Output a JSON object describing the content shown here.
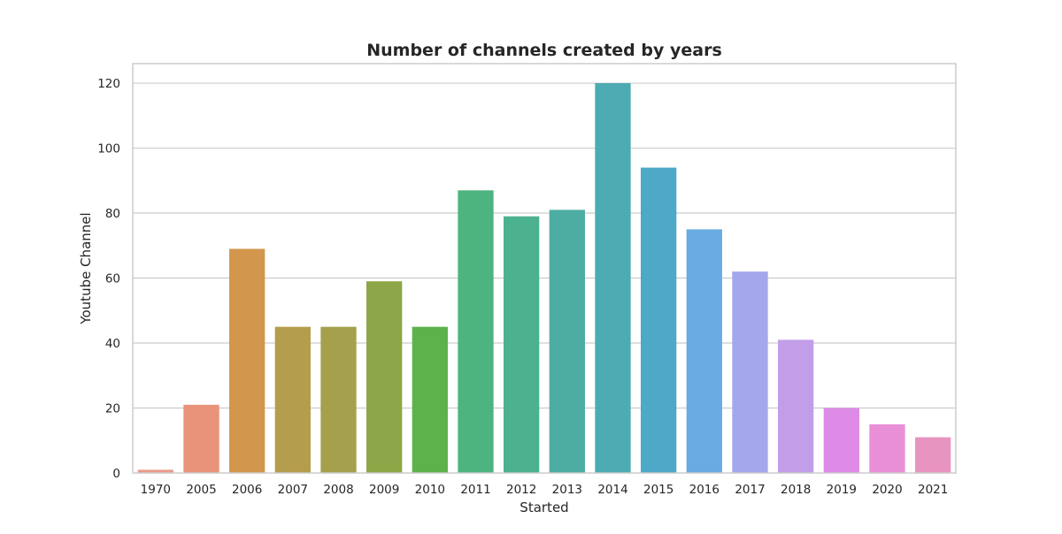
{
  "chart_data": {
    "type": "bar",
    "title": "Number of channels created by years",
    "xlabel": "Started",
    "ylabel": "Youtube Channel",
    "categories": [
      "1970",
      "2005",
      "2006",
      "2007",
      "2008",
      "2009",
      "2010",
      "2011",
      "2012",
      "2013",
      "2014",
      "2015",
      "2016",
      "2017",
      "2018",
      "2019",
      "2020",
      "2021"
    ],
    "values": [
      1,
      21,
      69,
      45,
      45,
      59,
      45,
      87,
      79,
      81,
      120,
      94,
      75,
      62,
      41,
      20,
      15,
      11
    ],
    "colors": [
      "#ea9b8b",
      "#e8937a",
      "#d2974d",
      "#b59d4e",
      "#a4a04c",
      "#8da647",
      "#5eb24c",
      "#4db37f",
      "#4cb18e",
      "#4dada3",
      "#4dabb3",
      "#4ea8c8",
      "#69abe2",
      "#a3a7ec",
      "#c29ee9",
      "#de8ae7",
      "#e98fd8",
      "#e894c0"
    ],
    "ylim": [
      0,
      126
    ],
    "yticks": [
      0,
      20,
      40,
      60,
      80,
      100,
      120
    ],
    "grid": true,
    "legend": "none"
  }
}
